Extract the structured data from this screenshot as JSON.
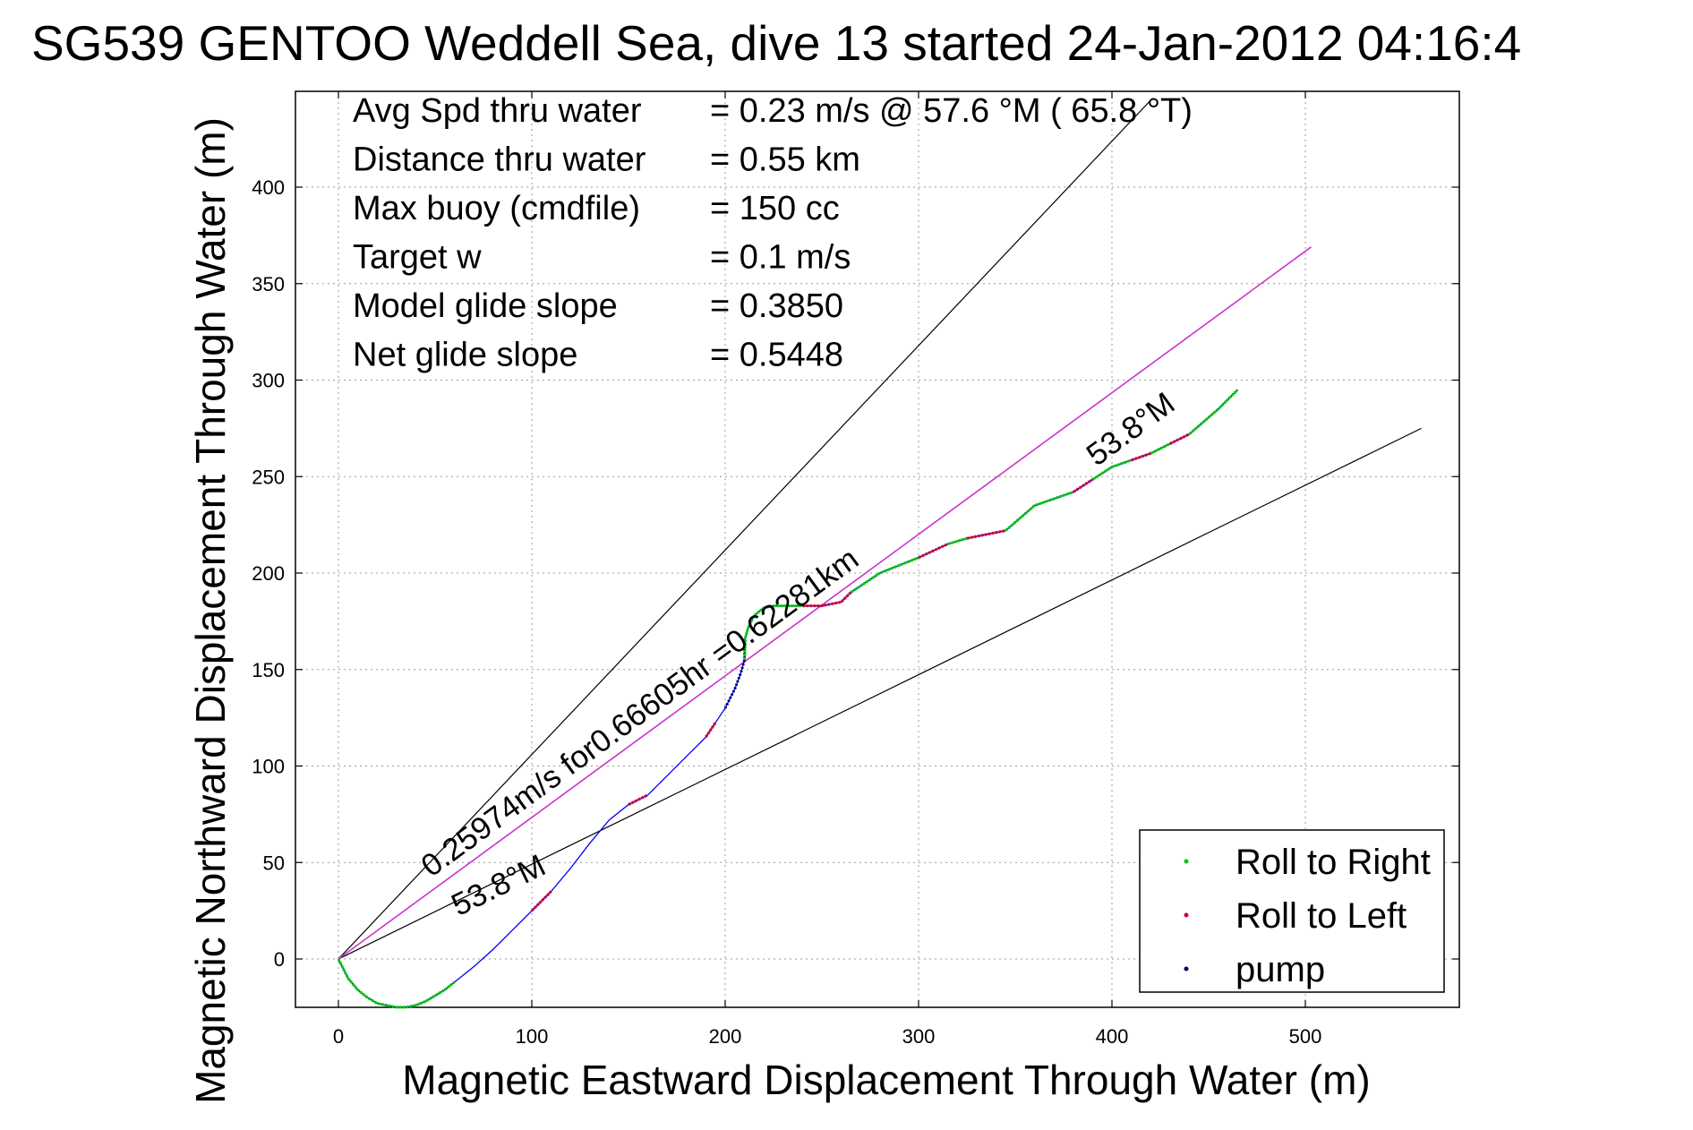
{
  "chart_data": {
    "type": "line",
    "title": "SG539 GENTOO Weddell Sea, dive 13 started 24-Jan-2012 04:16:4",
    "xlabel": "Magnetic Eastward Displacement Through Water (m)",
    "ylabel": "Magnetic Northward Displacement Through Water (m)",
    "xlim": [
      -22,
      580
    ],
    "ylim": [
      -25,
      450
    ],
    "xticks": [
      0,
      100,
      200,
      300,
      400,
      500
    ],
    "yticks": [
      0,
      50,
      100,
      150,
      200,
      250,
      300,
      350,
      400
    ],
    "grid": true,
    "legend_position": "bottom-right",
    "info_lines": [
      {
        "label": "Avg Spd thru water",
        "value": "=  0.23 m/s @  57.6 °M ( 65.8 °T)"
      },
      {
        "label": "Distance thru water",
        "value": "=  0.55 km"
      },
      {
        "label": "Max buoy (cmdfile)",
        "value": "= 150 cc"
      },
      {
        "label": "Target w",
        "value": "= 0.1 m/s"
      },
      {
        "label": "Model glide slope",
        "value": "= 0.3850"
      },
      {
        "label": "Net glide slope",
        "value": "= 0.5448"
      }
    ],
    "annotations": {
      "summary": "0.25974m/s for0.66605hr =0.62281km",
      "heading_lower": "53.8°M",
      "heading_upper": "53.8°M"
    },
    "reference_lines": [
      {
        "kind": "envelope-upper",
        "x": [
          0,
          420
        ],
        "y": [
          0,
          445
        ],
        "color": "#000000"
      },
      {
        "kind": "envelope-lower",
        "x": [
          0,
          560
        ],
        "y": [
          0,
          275
        ],
        "color": "#000000"
      },
      {
        "kind": "track",
        "x": [
          0,
          503
        ],
        "y": [
          0,
          369
        ],
        "color": "#cc33cc"
      }
    ],
    "trajectory": {
      "color": "#0000ff",
      "x": [
        0,
        5,
        10,
        15,
        20,
        25,
        30,
        35,
        40,
        45,
        50,
        55,
        60,
        70,
        80,
        90,
        100,
        110,
        120,
        130,
        140,
        150,
        160,
        170,
        180,
        190,
        200,
        205,
        208,
        210,
        210,
        212,
        215,
        220,
        225,
        230,
        240,
        250,
        260,
        265,
        280,
        300,
        315,
        325,
        345,
        360,
        380,
        400,
        420,
        440,
        455,
        465
      ],
      "y": [
        0,
        -10,
        -16,
        -20,
        -23,
        -24,
        -25,
        -25,
        -24,
        -22,
        -19,
        -16,
        -12,
        -4,
        5,
        15,
        25,
        35,
        47,
        60,
        72,
        80,
        85,
        95,
        105,
        115,
        130,
        140,
        148,
        155,
        165,
        172,
        178,
        182,
        183,
        183,
        183,
        183,
        185,
        190,
        200,
        208,
        215,
        218,
        222,
        235,
        242,
        255,
        262,
        272,
        285,
        295
      ]
    },
    "segments": [
      {
        "kind": "roll-right",
        "color": "#00cc00",
        "x": [
          0,
          5,
          10,
          15,
          20,
          25,
          30,
          35,
          40,
          45,
          50,
          55,
          60
        ]
      },
      {
        "kind": "roll-left",
        "color": "#cc0033",
        "x": [
          100,
          110
        ]
      },
      {
        "kind": "roll-left",
        "color": "#cc0033",
        "x": [
          150,
          160
        ]
      },
      {
        "kind": "roll-left",
        "color": "#cc0033",
        "x": [
          190,
          195
        ]
      },
      {
        "kind": "pump",
        "color": "#000066",
        "x": [
          200,
          205,
          208,
          210
        ]
      },
      {
        "kind": "roll-right",
        "color": "#00cc00",
        "x": [
          210,
          212,
          215,
          220,
          225,
          230,
          240
        ]
      },
      {
        "kind": "roll-left",
        "color": "#cc0033",
        "x": [
          240,
          250,
          260,
          265
        ]
      },
      {
        "kind": "roll-right",
        "color": "#00cc00",
        "x": [
          265,
          280,
          300
        ]
      },
      {
        "kind": "roll-left",
        "color": "#cc0033",
        "x": [
          300,
          315
        ]
      },
      {
        "kind": "roll-right",
        "color": "#00cc00",
        "x": [
          315,
          325
        ]
      },
      {
        "kind": "roll-left",
        "color": "#cc0033",
        "x": [
          325,
          345
        ]
      },
      {
        "kind": "roll-right",
        "color": "#00cc00",
        "x": [
          345,
          360,
          380
        ]
      },
      {
        "kind": "roll-left",
        "color": "#cc0033",
        "x": [
          380,
          390
        ]
      },
      {
        "kind": "roll-right",
        "color": "#00cc00",
        "x": [
          390,
          400,
          410
        ]
      },
      {
        "kind": "roll-left",
        "color": "#cc0033",
        "x": [
          410,
          420
        ]
      },
      {
        "kind": "roll-right",
        "color": "#00cc00",
        "x": [
          420,
          430
        ]
      },
      {
        "kind": "roll-left",
        "color": "#cc0033",
        "x": [
          430,
          440
        ]
      },
      {
        "kind": "roll-right",
        "color": "#00cc00",
        "x": [
          440,
          455,
          465
        ]
      }
    ],
    "legend": [
      {
        "label": "Roll to Right",
        "color": "#00cc00"
      },
      {
        "label": "Roll to Left",
        "color": "#cc0033"
      },
      {
        "label": "pump",
        "color": "#000066"
      }
    ]
  }
}
